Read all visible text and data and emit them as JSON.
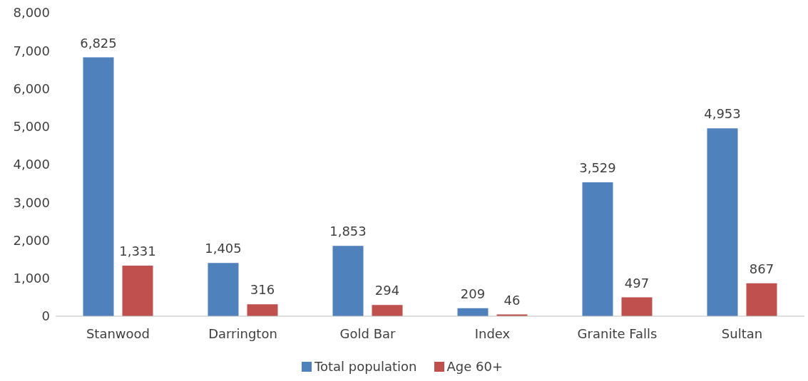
{
  "chart_data": {
    "type": "bar",
    "categories": [
      "Stanwood",
      "Darrington",
      "Gold Bar",
      "Index",
      "Granite Falls",
      "Sultan"
    ],
    "series": [
      {
        "name": "Total population",
        "color": "#4f81bd",
        "values": [
          6825,
          1405,
          1853,
          209,
          3529,
          4953
        ],
        "value_labels": [
          "6,825",
          "1,405",
          "1,853",
          "209",
          "3,529",
          "4,953"
        ]
      },
      {
        "name": "Age 60+",
        "color": "#c0504d",
        "values": [
          1331,
          316,
          294,
          46,
          497,
          867
        ],
        "value_labels": [
          "1,331",
          "316",
          "294",
          "46",
          "497",
          "867"
        ]
      }
    ],
    "ylim": [
      0,
      8000
    ],
    "yticks": [
      0,
      {
        "value": 1000,
        "label": "1,000"
      },
      {
        "value": 2000,
        "label": "2,000"
      },
      {
        "value": 3000,
        "label": "3,000"
      },
      {
        "value": 4000,
        "label": "4,000"
      },
      {
        "value": 5000,
        "label": "5,000"
      },
      {
        "value": 6000,
        "label": "6,000"
      },
      {
        "value": 7000,
        "label": "7,000"
      },
      {
        "value": 8000,
        "label": "8,000"
      }
    ],
    "legend": "bottom"
  }
}
